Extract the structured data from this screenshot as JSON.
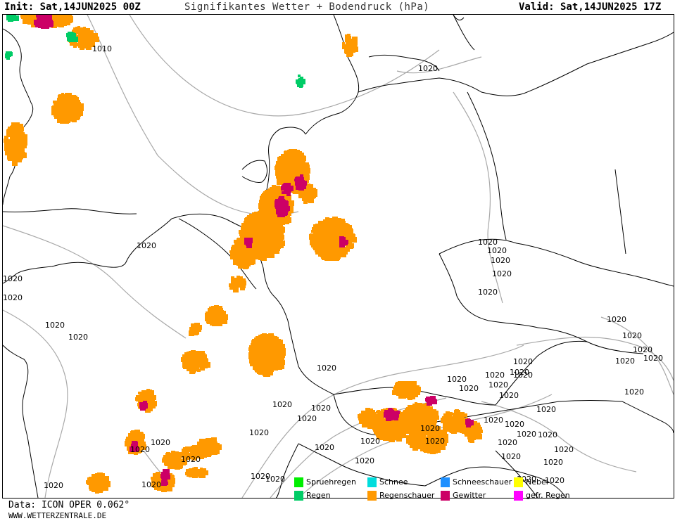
{
  "header": {
    "init": "Init: Sat,14JUN2025 00Z",
    "title": "Signifikantes Wetter + Bodendruck (hPa)",
    "valid": "Valid: Sat,14JUN2025 17Z"
  },
  "isobar_labels": [
    "1010",
    "1020"
  ],
  "legend": [
    {
      "label": "Spruehregen",
      "color": "#00ee00"
    },
    {
      "label": "Schnee",
      "color": "#00dddd"
    },
    {
      "label": "Schneeschauer",
      "color": "#1e90ff"
    },
    {
      "label": "Nebel",
      "color": "#ffff00"
    },
    {
      "label": "Regen",
      "color": "#00cc66"
    },
    {
      "label": "Regenschauer",
      "color": "#ff9900"
    },
    {
      "label": "Gewitter",
      "color": "#cc0066"
    },
    {
      "label": "gefr. Regen",
      "color": "#ff00ff"
    }
  ],
  "footer": {
    "source": "Data: ICON OPER 0.062°",
    "url": "WWW.WETTERZENTRALE.DE"
  },
  "colors": {
    "coast": "#000000",
    "isobar": "#a8a8a8",
    "rain_showers": "#ff9900",
    "thunderstorm": "#cc0066",
    "rain": "#00cc66"
  }
}
